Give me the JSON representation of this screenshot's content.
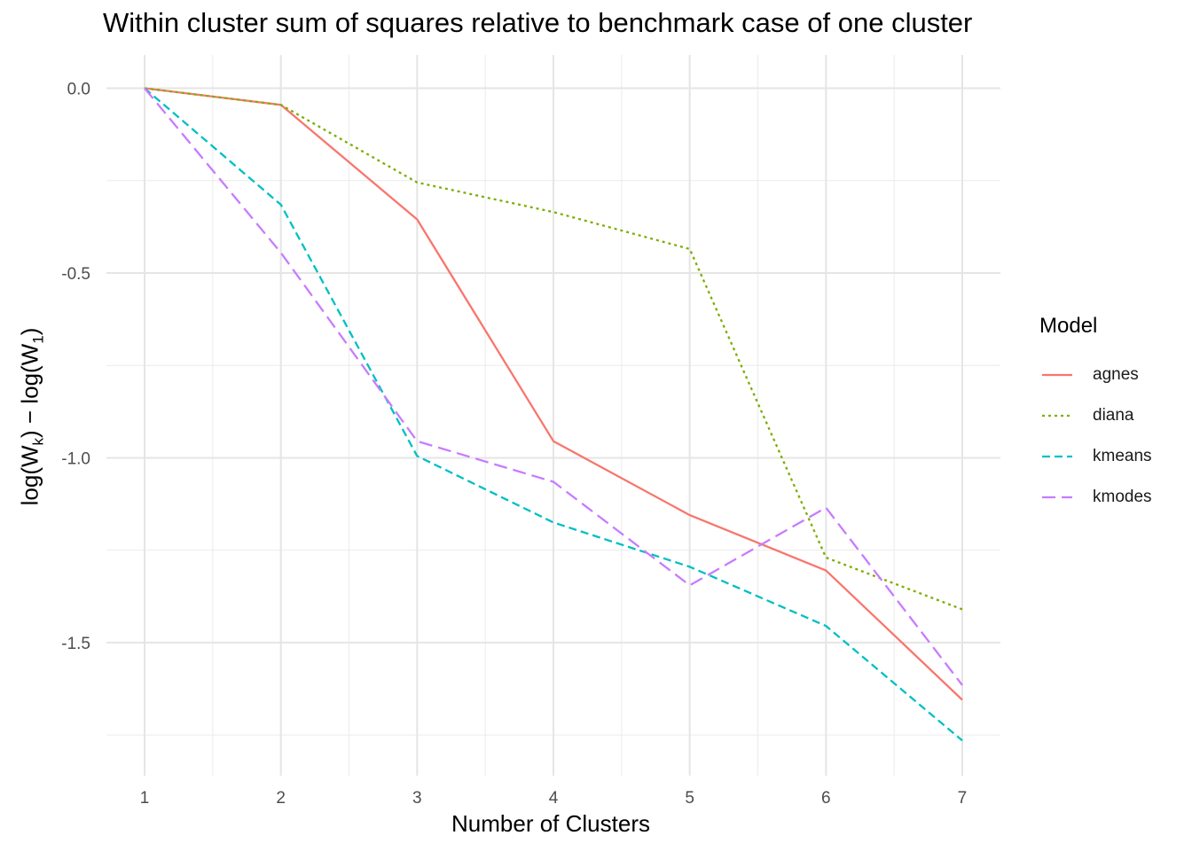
{
  "chart_data": {
    "type": "line",
    "title": "Within cluster sum of squares relative to benchmark case of one cluster",
    "xlabel": "Number of Clusters",
    "ylabel": {
      "prefix": "log(W",
      "sub1": "k",
      "middle": ") − log(W",
      "sub2": "1",
      "suffix": ")"
    },
    "x": [
      1,
      2,
      3,
      4,
      5,
      6,
      7
    ],
    "xlim": [
      0.72,
      7.28
    ],
    "ylim": [
      -1.86,
      0.09
    ],
    "x_ticks": [
      "1",
      "2",
      "3",
      "4",
      "5",
      "6",
      "7"
    ],
    "y_ticks": [
      {
        "value": 0.0,
        "label": "0.0"
      },
      {
        "value": -0.5,
        "label": "-0.5"
      },
      {
        "value": -1.0,
        "label": "-1.0"
      },
      {
        "value": -1.5,
        "label": "-1.5"
      }
    ],
    "grid": true,
    "legend_title": "Model",
    "legend_position": "right",
    "series": [
      {
        "name": "agnes",
        "color": "#F8766D",
        "dash": "solid",
        "values": [
          0.0,
          -0.045,
          -0.355,
          -0.955,
          -1.155,
          -1.305,
          -1.655
        ]
      },
      {
        "name": "diana",
        "color": "#7CAE00",
        "dash": "dotted",
        "values": [
          0.0,
          -0.045,
          -0.255,
          -0.335,
          -0.435,
          -1.27,
          -1.41
        ]
      },
      {
        "name": "kmeans",
        "color": "#00BFC4",
        "dash": "dashed",
        "values": [
          0.0,
          -0.315,
          -0.995,
          -1.175,
          -1.295,
          -1.455,
          -1.765
        ]
      },
      {
        "name": "kmodes",
        "color": "#C77CFF",
        "dash": "longdash",
        "values": [
          0.0,
          -0.445,
          -0.955,
          -1.065,
          -1.345,
          -1.135,
          -1.615
        ]
      }
    ]
  }
}
